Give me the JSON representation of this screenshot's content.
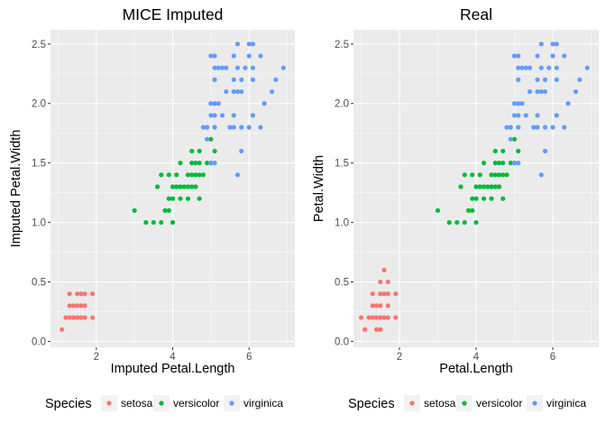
{
  "chart_data": [
    {
      "type": "scatter",
      "title": "MICE Imputed",
      "xlabel": "Imputed Petal.Length",
      "ylabel": "Imputed Petal.Width",
      "xlim": [
        0.8,
        7.2
      ],
      "ylim": [
        -0.05,
        2.62
      ],
      "xticks": [
        2,
        4,
        6
      ],
      "yticks": [
        0.0,
        0.5,
        1.0,
        1.5,
        2.0,
        2.5
      ],
      "ytick_labels": [
        "0.0",
        "0.5",
        "1.0",
        "1.5",
        "2.0",
        "2.5"
      ],
      "grid": true,
      "legend": {
        "title": "Species",
        "position": "bottom",
        "entries": [
          "setosa",
          "versicolor",
          "virginica"
        ]
      },
      "series": [
        {
          "name": "setosa",
          "color": "#F8766D",
          "points": [
            [
              1.1,
              0.1
            ],
            [
              1.2,
              0.2
            ],
            [
              1.3,
              0.2
            ],
            [
              1.4,
              0.2
            ],
            [
              1.5,
              0.2
            ],
            [
              1.6,
              0.2
            ],
            [
              1.7,
              0.2
            ],
            [
              1.9,
              0.2
            ],
            [
              1.3,
              0.3
            ],
            [
              1.4,
              0.3
            ],
            [
              1.5,
              0.3
            ],
            [
              1.6,
              0.3
            ],
            [
              1.7,
              0.3
            ],
            [
              1.3,
              0.4
            ],
            [
              1.5,
              0.4
            ],
            [
              1.6,
              0.4
            ],
            [
              1.7,
              0.4
            ],
            [
              1.9,
              0.4
            ]
          ]
        },
        {
          "name": "versicolor",
          "color": "#00BA38",
          "points": [
            [
              3.0,
              1.1
            ],
            [
              3.3,
              1.0
            ],
            [
              3.5,
              1.0
            ],
            [
              3.7,
              1.0
            ],
            [
              4.0,
              1.0
            ],
            [
              3.8,
              1.1
            ],
            [
              3.9,
              1.1
            ],
            [
              3.6,
              1.3
            ],
            [
              3.9,
              1.2
            ],
            [
              4.0,
              1.2
            ],
            [
              4.2,
              1.2
            ],
            [
              4.4,
              1.2
            ],
            [
              4.7,
              1.2
            ],
            [
              4.0,
              1.3
            ],
            [
              4.1,
              1.3
            ],
            [
              4.2,
              1.3
            ],
            [
              4.3,
              1.3
            ],
            [
              4.4,
              1.3
            ],
            [
              4.5,
              1.3
            ],
            [
              4.6,
              1.3
            ],
            [
              3.7,
              1.4
            ],
            [
              4.1,
              1.4
            ],
            [
              4.4,
              1.4
            ],
            [
              4.5,
              1.4
            ],
            [
              4.6,
              1.4
            ],
            [
              4.7,
              1.4
            ],
            [
              4.8,
              1.4
            ],
            [
              4.2,
              1.5
            ],
            [
              4.5,
              1.5
            ],
            [
              4.6,
              1.5
            ],
            [
              4.7,
              1.5
            ],
            [
              4.9,
              1.5
            ],
            [
              5.0,
              1.5
            ],
            [
              3.9,
              1.4
            ],
            [
              4.5,
              1.6
            ],
            [
              5.1,
              1.6
            ],
            [
              4.7,
              1.6
            ],
            [
              5.0,
              1.7
            ]
          ]
        },
        {
          "name": "virginica",
          "color": "#619CFF",
          "points": [
            [
              5.1,
              1.5
            ],
            [
              5.0,
              1.5
            ],
            [
              5.7,
              1.4
            ],
            [
              5.8,
              1.6
            ],
            [
              4.8,
              1.8
            ],
            [
              4.9,
              1.8
            ],
            [
              5.1,
              1.8
            ],
            [
              5.5,
              1.8
            ],
            [
              5.6,
              1.8
            ],
            [
              5.8,
              1.8
            ],
            [
              6.0,
              1.8
            ],
            [
              6.3,
              1.8
            ],
            [
              5.0,
              1.9
            ],
            [
              5.1,
              1.9
            ],
            [
              5.3,
              1.9
            ],
            [
              5.6,
              1.9
            ],
            [
              6.1,
              1.9
            ],
            [
              5.0,
              2.0
            ],
            [
              5.1,
              2.0
            ],
            [
              5.2,
              2.0
            ],
            [
              6.4,
              2.0
            ],
            [
              5.6,
              2.1
            ],
            [
              5.7,
              2.1
            ],
            [
              5.8,
              2.1
            ],
            [
              6.6,
              2.1
            ],
            [
              5.6,
              2.2
            ],
            [
              6.1,
              2.2
            ],
            [
              6.7,
              2.2
            ],
            [
              5.1,
              2.3
            ],
            [
              5.2,
              2.3
            ],
            [
              5.3,
              2.3
            ],
            [
              5.4,
              2.3
            ],
            [
              5.7,
              2.3
            ],
            [
              5.9,
              2.3
            ],
            [
              6.1,
              2.3
            ],
            [
              6.9,
              2.3
            ],
            [
              5.1,
              2.4
            ],
            [
              5.6,
              2.4
            ],
            [
              6.0,
              2.4
            ],
            [
              5.7,
              2.5
            ],
            [
              6.0,
              2.5
            ],
            [
              6.1,
              2.5
            ],
            [
              4.9,
              1.7
            ],
            [
              5.8,
              2.2
            ],
            [
              5.0,
              2.4
            ],
            [
              5.1,
              2.2
            ],
            [
              5.4,
              2.1
            ],
            [
              6.3,
              2.4
            ]
          ]
        }
      ]
    },
    {
      "type": "scatter",
      "title": "Real",
      "xlabel": "Petal.Length",
      "ylabel": "Petal.Width",
      "xlim": [
        0.8,
        7.2
      ],
      "ylim": [
        -0.05,
        2.62
      ],
      "xticks": [
        2,
        4,
        6
      ],
      "yticks": [
        0.0,
        0.5,
        1.0,
        1.5,
        2.0,
        2.5
      ],
      "ytick_labels": [
        "0.0",
        "0.5",
        "1.0",
        "1.5",
        "2.0",
        "2.5"
      ],
      "grid": true,
      "legend": {
        "title": "Species",
        "position": "bottom",
        "entries": [
          "setosa",
          "versicolor",
          "virginica"
        ]
      },
      "series": [
        {
          "name": "setosa",
          "color": "#F8766D",
          "points": [
            [
              1.0,
              0.2
            ],
            [
              1.1,
              0.1
            ],
            [
              1.2,
              0.2
            ],
            [
              1.3,
              0.2
            ],
            [
              1.4,
              0.2
            ],
            [
              1.5,
              0.2
            ],
            [
              1.6,
              0.2
            ],
            [
              1.7,
              0.2
            ],
            [
              1.9,
              0.2
            ],
            [
              1.4,
              0.1
            ],
            [
              1.5,
              0.1
            ],
            [
              1.3,
              0.3
            ],
            [
              1.4,
              0.3
            ],
            [
              1.5,
              0.3
            ],
            [
              1.7,
              0.3
            ],
            [
              1.3,
              0.4
            ],
            [
              1.5,
              0.4
            ],
            [
              1.6,
              0.4
            ],
            [
              1.7,
              0.4
            ],
            [
              1.9,
              0.4
            ],
            [
              1.5,
              0.5
            ],
            [
              1.7,
              0.5
            ],
            [
              1.6,
              0.6
            ]
          ]
        },
        {
          "name": "versicolor",
          "color": "#00BA38",
          "points": [
            [
              3.0,
              1.1
            ],
            [
              3.3,
              1.0
            ],
            [
              3.5,
              1.0
            ],
            [
              3.7,
              1.0
            ],
            [
              4.0,
              1.0
            ],
            [
              3.8,
              1.1
            ],
            [
              3.9,
              1.1
            ],
            [
              3.6,
              1.3
            ],
            [
              3.9,
              1.2
            ],
            [
              4.0,
              1.2
            ],
            [
              4.2,
              1.2
            ],
            [
              4.4,
              1.2
            ],
            [
              4.7,
              1.2
            ],
            [
              4.0,
              1.3
            ],
            [
              4.1,
              1.3
            ],
            [
              4.2,
              1.3
            ],
            [
              4.3,
              1.3
            ],
            [
              4.4,
              1.3
            ],
            [
              4.5,
              1.3
            ],
            [
              4.6,
              1.3
            ],
            [
              3.7,
              1.4
            ],
            [
              4.1,
              1.4
            ],
            [
              4.4,
              1.4
            ],
            [
              4.5,
              1.4
            ],
            [
              4.6,
              1.4
            ],
            [
              4.7,
              1.4
            ],
            [
              4.8,
              1.4
            ],
            [
              4.2,
              1.5
            ],
            [
              4.5,
              1.5
            ],
            [
              4.6,
              1.5
            ],
            [
              4.7,
              1.5
            ],
            [
              4.9,
              1.5
            ],
            [
              5.0,
              1.5
            ],
            [
              3.9,
              1.4
            ],
            [
              4.5,
              1.6
            ],
            [
              5.1,
              1.6
            ],
            [
              4.7,
              1.6
            ],
            [
              5.0,
              1.7
            ]
          ]
        },
        {
          "name": "virginica",
          "color": "#619CFF",
          "points": [
            [
              5.1,
              1.5
            ],
            [
              5.0,
              1.5
            ],
            [
              5.7,
              1.4
            ],
            [
              5.8,
              1.6
            ],
            [
              4.8,
              1.8
            ],
            [
              4.9,
              1.8
            ],
            [
              5.1,
              1.8
            ],
            [
              5.5,
              1.8
            ],
            [
              5.6,
              1.8
            ],
            [
              5.8,
              1.8
            ],
            [
              6.0,
              1.8
            ],
            [
              6.3,
              1.8
            ],
            [
              5.0,
              1.9
            ],
            [
              5.1,
              1.9
            ],
            [
              5.3,
              1.9
            ],
            [
              5.6,
              1.9
            ],
            [
              6.1,
              1.9
            ],
            [
              5.0,
              2.0
            ],
            [
              5.1,
              2.0
            ],
            [
              5.2,
              2.0
            ],
            [
              6.4,
              2.0
            ],
            [
              5.6,
              2.1
            ],
            [
              5.7,
              2.1
            ],
            [
              5.8,
              2.1
            ],
            [
              6.6,
              2.1
            ],
            [
              5.6,
              2.2
            ],
            [
              6.1,
              2.2
            ],
            [
              6.7,
              2.2
            ],
            [
              5.1,
              2.3
            ],
            [
              5.2,
              2.3
            ],
            [
              5.3,
              2.3
            ],
            [
              5.4,
              2.3
            ],
            [
              5.7,
              2.3
            ],
            [
              5.9,
              2.3
            ],
            [
              6.1,
              2.3
            ],
            [
              6.9,
              2.3
            ],
            [
              5.1,
              2.4
            ],
            [
              5.6,
              2.4
            ],
            [
              6.0,
              2.4
            ],
            [
              5.7,
              2.5
            ],
            [
              6.0,
              2.5
            ],
            [
              6.1,
              2.5
            ],
            [
              4.9,
              1.7
            ],
            [
              5.8,
              2.2
            ],
            [
              5.0,
              2.4
            ],
            [
              5.1,
              2.2
            ],
            [
              5.4,
              2.1
            ],
            [
              6.3,
              2.4
            ]
          ]
        }
      ]
    }
  ]
}
